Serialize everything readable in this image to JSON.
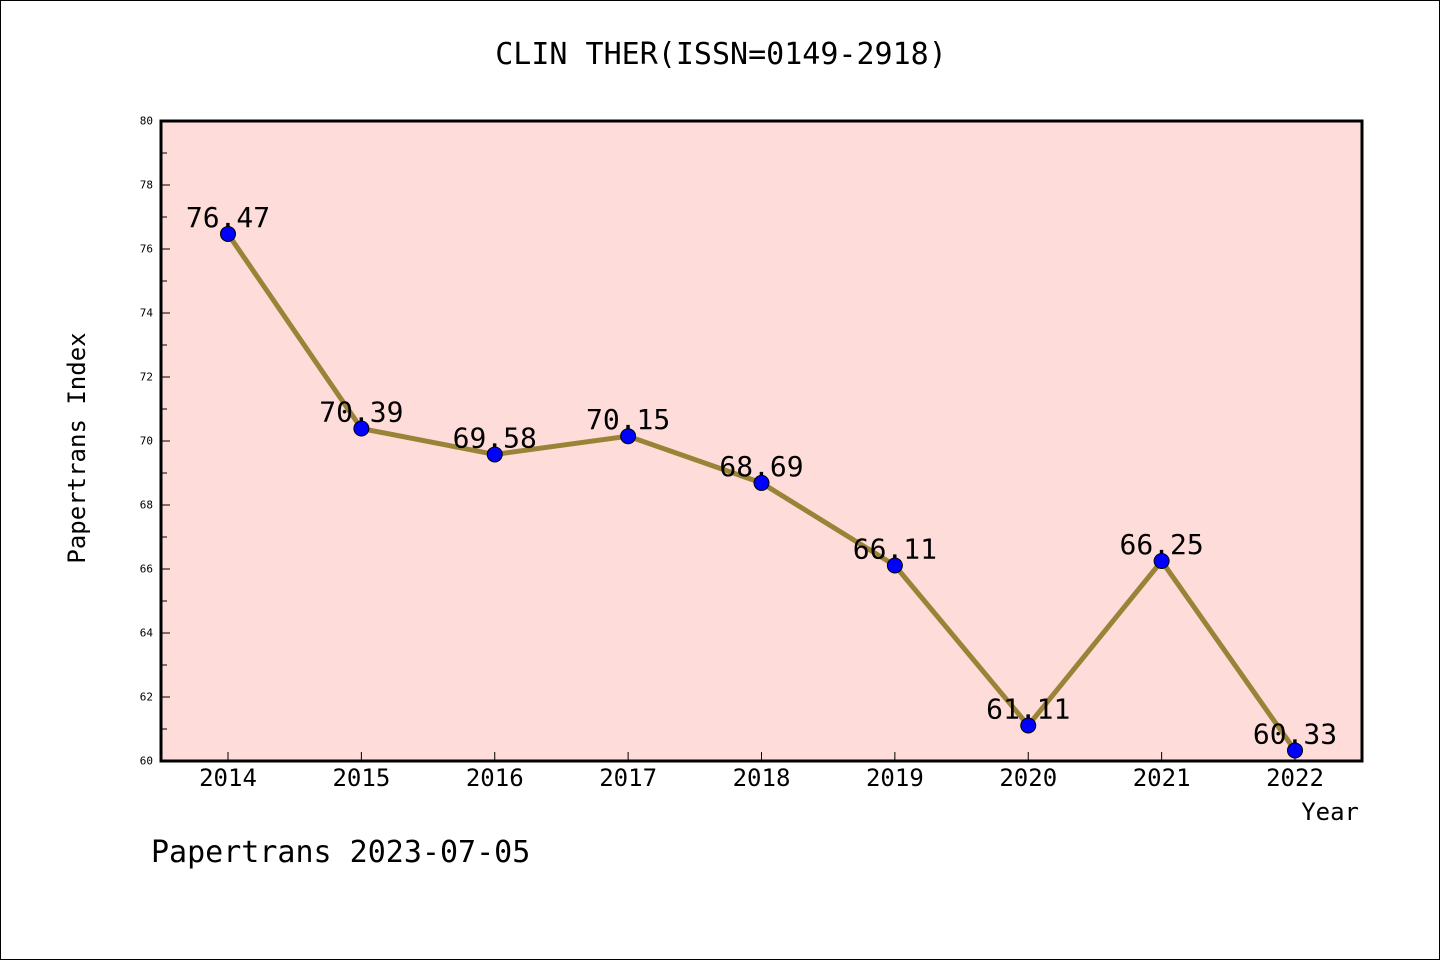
{
  "chart_data": {
    "type": "line",
    "title": "CLIN THER(ISSN=0149-2918)",
    "xlabel": "Year",
    "ylabel": "Papertrans Index",
    "categories": [
      "2014",
      "2015",
      "2016",
      "2017",
      "2018",
      "2019",
      "2020",
      "2021",
      "2022"
    ],
    "series": [
      {
        "values": [
          76.47,
          70.39,
          69.58,
          70.15,
          68.69,
          66.11,
          61.11,
          66.25,
          60.33
        ]
      }
    ],
    "data_labels": [
      "76.47",
      "70.39",
      "69.58",
      "70.15",
      "68.69",
      "66.11",
      "61.11",
      "66.25",
      "60.33"
    ],
    "ylim": [
      60,
      80
    ],
    "y_ticks": [
      "60",
      "62",
      "64",
      "66",
      "68",
      "70",
      "72",
      "74",
      "76",
      "78",
      "80"
    ],
    "grid": false,
    "legend": "none",
    "colors": {
      "plot_bg": "#fddcd9",
      "line": "#9a8337",
      "marker": "#0000ff"
    }
  },
  "footer": {
    "text": "Papertrans 2023-07-05"
  }
}
